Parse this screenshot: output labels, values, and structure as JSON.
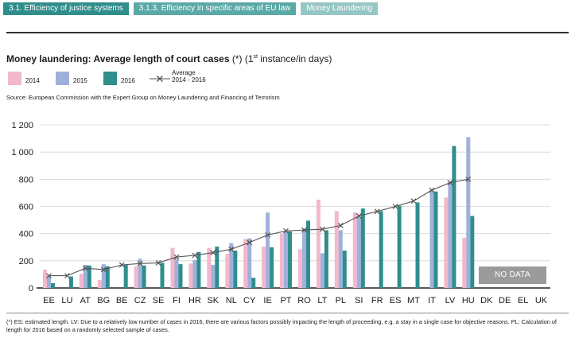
{
  "breadcrumb": {
    "items": [
      "3.1. Efficiency of justice systems",
      "3.1.3. Efficiency in specific areas of EU law",
      "Money Laundering"
    ]
  },
  "title": {
    "main": "Money laundering: Average length of court cases",
    "suffix_pre": "(*) (1",
    "suffix_sup": "st",
    "suffix_post": " instance/in days)"
  },
  "legend": {
    "y2014": "2014",
    "y2015": "2015",
    "y2016": "2016",
    "average_line1": "Average",
    "average_line2": "2014 - 2016"
  },
  "source": "Source: European Commission with the Expert Group on Money Laundering and Financing of Terrorism",
  "nodata_label": "NO DATA",
  "footnote": "(*) ES: estimated length. LV: Due to a relatively low number of cases in 2016, there are various factors possibly impacting the length of proceeding, e.g. a stay in a single case for objective reasons. PL: Calculation of length for 2016 based on a randomly selected sample of cases.",
  "colors": {
    "y2014": "#f2b8cb",
    "y2015": "#9fb0da",
    "y2016": "#2f8e8c",
    "average": "#555555"
  },
  "chart_data": {
    "type": "bar",
    "title": "Money laundering: Average length of court cases (*) (1st instance/in days)",
    "xlabel": "",
    "ylabel": "",
    "ylim": [
      0,
      1200
    ],
    "yticks": [
      0,
      200,
      400,
      600,
      800,
      1000,
      1200
    ],
    "ytick_labels": [
      "0",
      "200",
      "400",
      "600",
      "800",
      "1 000",
      "1 200"
    ],
    "grid": true,
    "categories": [
      "EE",
      "LU",
      "AT",
      "BG",
      "BE",
      "CZ",
      "SE",
      "FI",
      "HR",
      "SK",
      "NL",
      "CY",
      "IE",
      "PT",
      "RO",
      "LT",
      "PL",
      "SI",
      "FR",
      "ES",
      "MT",
      "IT",
      "LV",
      "HU",
      "DK",
      "DE",
      "EL",
      "UK"
    ],
    "series": [
      {
        "name": "2014",
        "type": "bar",
        "values": [
          135,
          null,
          105,
          60,
          null,
          160,
          null,
          295,
          180,
          295,
          250,
          360,
          305,
          400,
          285,
          650,
          565,
          555,
          null,
          null,
          null,
          null,
          665,
          370,
          null,
          null,
          null,
          null
        ]
      },
      {
        "name": "2015",
        "type": "bar",
        "values": [
          90,
          null,
          170,
          175,
          null,
          215,
          null,
          215,
          205,
          170,
          330,
          365,
          555,
          415,
          435,
          255,
          425,
          520,
          null,
          null,
          null,
          725,
          780,
          1110,
          null,
          null,
          null,
          null
        ]
      },
      {
        "name": "2016",
        "type": "bar",
        "values": [
          35,
          85,
          165,
          160,
          170,
          165,
          185,
          175,
          265,
          305,
          275,
          75,
          300,
          415,
          495,
          425,
          275,
          585,
          565,
          605,
          630,
          710,
          1045,
          530,
          null,
          null,
          null,
          null
        ]
      },
      {
        "name": "Average 2014 - 2016",
        "type": "line",
        "values": [
          90,
          90,
          145,
          135,
          170,
          180,
          185,
          228,
          240,
          260,
          285,
          335,
          390,
          420,
          427,
          432,
          460,
          530,
          563,
          600,
          640,
          720,
          775,
          800,
          null,
          null,
          null,
          null
        ]
      }
    ],
    "no_data_categories": [
      "DK",
      "DE",
      "EL",
      "UK"
    ]
  }
}
